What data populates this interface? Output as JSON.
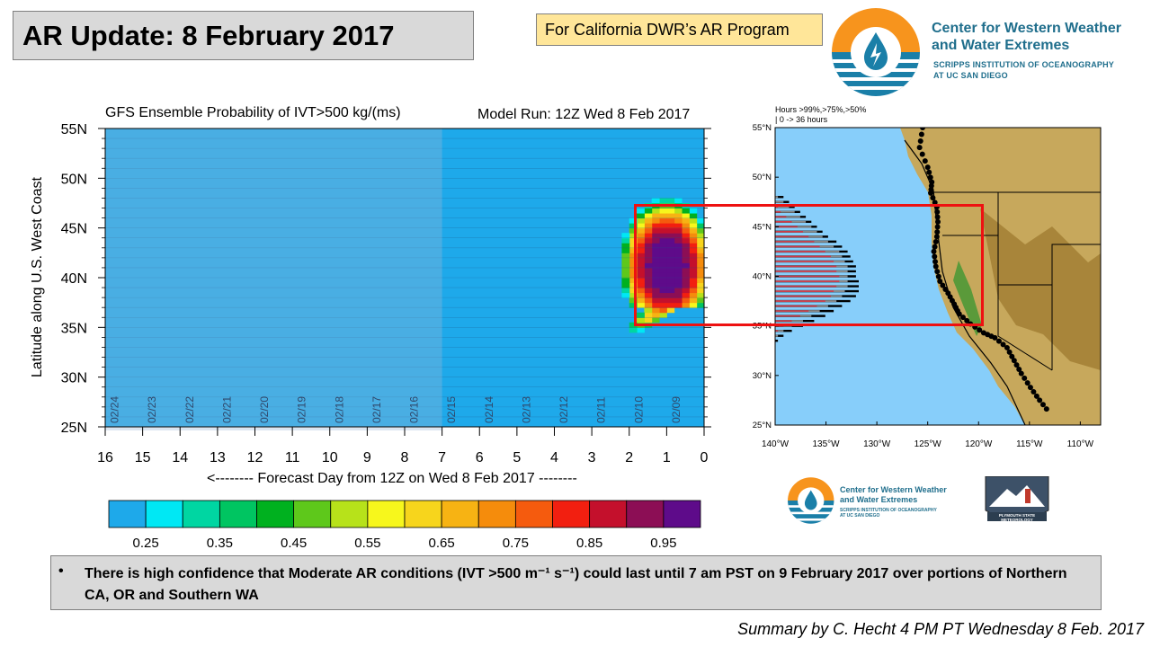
{
  "header": {
    "title": "AR Update: 8 February 2017",
    "program_note": "For California DWR’s AR Program",
    "logo_title_line1": "Center for Western Weather",
    "logo_title_line2": "and Water Extremes",
    "logo_sub_line1": "SCRIPPS INSTITUTION OF OCEANOGRAPHY",
    "logo_sub_line2": "AT UC SAN DIEGO",
    "logo_icon": "water-drop-logo-icon"
  },
  "chart_data": [
    {
      "type": "heatmap",
      "title": "GFS Ensemble Probability of IVT>500 kg/(ms)",
      "subtitle": "Model Run: 12Z Wed 8 Feb 2017",
      "xlabel": "<-------- Forecast Day from 12Z on Wed 8 Feb 2017 --------",
      "ylabel": "Latitude along U.S. West Coast",
      "x_ticks": [
        "16",
        "15",
        "14",
        "13",
        "12",
        "11",
        "10",
        "9",
        "8",
        "7",
        "6",
        "5",
        "4",
        "3",
        "2",
        "1",
        "0"
      ],
      "xlim": [
        16,
        0
      ],
      "y_ticks": [
        "25N",
        "30N",
        "35N",
        "40N",
        "45N",
        "50N",
        "55N"
      ],
      "ylim": [
        25,
        55
      ],
      "date_labels": [
        "02/24",
        "02/23",
        "02/22",
        "02/21",
        "02/20",
        "02/19",
        "02/18",
        "02/17",
        "02/16",
        "02/15",
        "02/14",
        "02/13",
        "02/12",
        "02/11",
        "02/10",
        "02/09"
      ],
      "background_probability": 0.2,
      "colorbar": {
        "colors": [
          "#1ea9ea",
          "#00e8f4",
          "#00d6a2",
          "#00c561",
          "#00b11f",
          "#5ec81b",
          "#b7e21a",
          "#f7f71c",
          "#f7d51c",
          "#f7b313",
          "#f58c0c",
          "#f55b0e",
          "#f21f10",
          "#c4102c",
          "#8c0e55",
          "#5e0b8a"
        ],
        "tick_labels": [
          "0.25",
          "0.35",
          "0.45",
          "0.55",
          "0.65",
          "0.75",
          "0.85",
          "0.95"
        ]
      },
      "shaded_region_days": [
        16,
        7
      ],
      "ar_region": {
        "description": "high probability core",
        "day_range": [
          0,
          2.4
        ],
        "lat_range": [
          34,
          48
        ],
        "peak_probability": 1.0
      }
    },
    {
      "type": "bar",
      "title": "Hours >99%,>75%,>50%",
      "subtitle": "| 0 -> 36 hours",
      "x_ticks": [
        "140°W",
        "135°W",
        "130°W",
        "125°W",
        "120°W",
        "115°W",
        "110°W"
      ],
      "y_ticks": [
        "25°N",
        "30°N",
        "35°N",
        "40°N",
        "45°N",
        "50°N",
        "55°N"
      ],
      "xlim": [
        -140,
        -108
      ],
      "ylim": [
        25,
        55
      ],
      "latitudes": [
        48.0,
        47.5,
        47.0,
        46.5,
        46.0,
        45.5,
        45.0,
        44.5,
        44.0,
        43.5,
        43.0,
        42.5,
        42.0,
        41.5,
        41.0,
        40.5,
        40.0,
        39.5,
        39.0,
        38.5,
        38.0,
        37.5,
        37.0,
        36.5,
        36.0,
        35.5,
        35.0,
        34.5,
        34.0,
        33.5
      ],
      "hours_99": [
        0,
        0,
        1,
        2,
        4,
        6,
        8,
        10,
        12,
        14,
        16,
        18,
        20,
        21,
        22,
        22,
        23,
        23,
        22,
        21,
        20,
        18,
        15,
        12,
        9,
        6,
        3,
        1,
        0,
        0
      ],
      "hours_75": [
        1,
        3,
        5,
        7,
        9,
        11,
        13,
        15,
        17,
        19,
        21,
        23,
        24,
        25,
        26,
        26,
        26,
        26,
        26,
        25,
        24,
        22,
        19,
        16,
        13,
        10,
        6,
        3,
        1,
        0
      ],
      "hours_50": [
        3,
        5,
        7,
        9,
        11,
        13,
        15,
        17,
        19,
        22,
        24,
        26,
        27,
        28,
        29,
        29,
        29,
        30,
        30,
        30,
        29,
        27,
        24,
        21,
        18,
        14,
        10,
        6,
        3,
        1
      ]
    }
  ],
  "bottom_logos": {
    "cw3e_title_line1": "Center for Western Weather",
    "cw3e_title_line2": "and Water Extremes",
    "cw3e_sub_line1": "SCRIPPS INSTITUTION OF OCEANOGRAPHY",
    "cw3e_sub_line2": "AT UC SAN DIEGO",
    "plymouth_label": "PLYMOUTH STATE METEOROLOGY"
  },
  "summary": {
    "bullet": "•",
    "text": "There is high confidence that Moderate AR conditions (IVT >500 m⁻¹ s⁻¹) could last until 7 am PST on 9 February 2017 over portions of Northern CA, OR and Southern WA"
  },
  "credit": "Summary by C. Hecht 4 PM PT Wednesday 8 Feb. 2017"
}
